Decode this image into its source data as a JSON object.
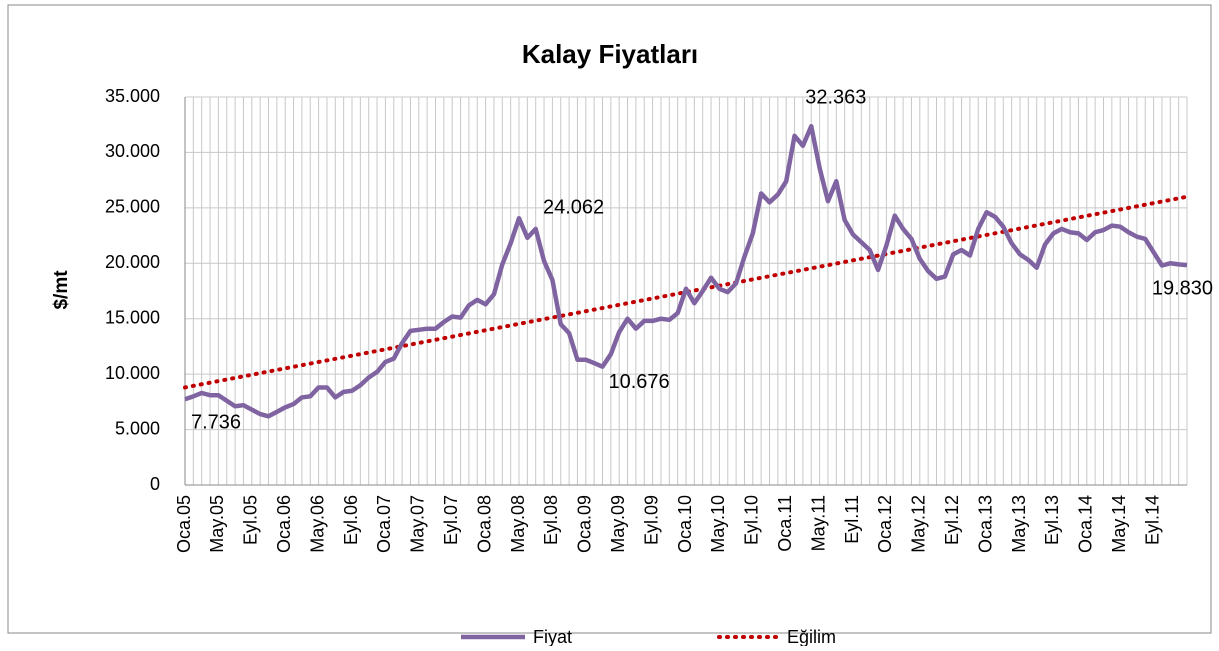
{
  "chart_data": {
    "type": "line",
    "title": "Kalay Fiyatları",
    "y_label": "$/mt",
    "categories": [
      "Oca.05",
      null,
      null,
      null,
      "May.05",
      null,
      null,
      null,
      "Eyl.05",
      null,
      null,
      null,
      "Oca.06",
      null,
      null,
      null,
      "May.06",
      null,
      null,
      null,
      "Eyl.06",
      null,
      null,
      null,
      "Oca.07",
      null,
      null,
      null,
      "May.07",
      null,
      null,
      null,
      "Eyl.07",
      null,
      null,
      null,
      "Oca.08",
      null,
      null,
      null,
      "May.08",
      null,
      null,
      null,
      "Eyl.08",
      null,
      null,
      null,
      "Oca.09",
      null,
      null,
      null,
      "May.09",
      null,
      null,
      null,
      "Eyl.09",
      null,
      null,
      null,
      "Oca.10",
      null,
      null,
      null,
      "May.10",
      null,
      null,
      null,
      "Eyl.10",
      null,
      null,
      null,
      "Oca.11",
      null,
      null,
      null,
      "May.11",
      null,
      null,
      null,
      "Eyl.11",
      null,
      null,
      null,
      "Oca.12",
      null,
      null,
      null,
      "May.12",
      null,
      null,
      null,
      "Eyl.12",
      null,
      null,
      null,
      "Oca.13",
      null,
      null,
      null,
      "May.13",
      null,
      null,
      null,
      "Eyl.13",
      null,
      null,
      null,
      "Oca.14",
      null,
      null,
      null,
      "May.14",
      null,
      null,
      null,
      "Eyl.14",
      null,
      null,
      null,
      null
    ],
    "series": [
      {
        "name": "Fiyat",
        "color": "#8064a2",
        "values": [
          7736,
          8000,
          8300,
          8100,
          8100,
          7600,
          7100,
          7200,
          6800,
          6400,
          6200,
          6600,
          7000,
          7300,
          7900,
          8000,
          8800,
          8800,
          7900,
          8400,
          8500,
          9000,
          9700,
          10200,
          11100,
          11400,
          12800,
          13900,
          14000,
          14100,
          14100,
          14700,
          15200,
          15100,
          16200,
          16700,
          16300,
          17200,
          19900,
          21800,
          24062,
          22300,
          23100,
          20200,
          18500,
          14500,
          13700,
          11300,
          11300,
          11000,
          10676,
          11800,
          13800,
          15000,
          14100,
          14800,
          14800,
          15000,
          14900,
          15500,
          17700,
          16400,
          17500,
          18700,
          17700,
          17400,
          18200,
          20600,
          22700,
          26300,
          25500,
          26200,
          27400,
          31500,
          30600,
          32363,
          28600,
          25600,
          27400,
          23900,
          22600,
          21900,
          21200,
          19400,
          21600,
          24300,
          23100,
          22200,
          20400,
          19300,
          18600,
          18800,
          20800,
          21200,
          20700,
          23100,
          24600,
          24200,
          23300,
          21800,
          20800,
          20300,
          19600,
          21700,
          22700,
          23100,
          22800,
          22700,
          22100,
          22800,
          23000,
          23400,
          23300,
          22800,
          22400,
          22200,
          21000,
          19800,
          20000,
          19900,
          19830
        ]
      }
    ],
    "trend": {
      "name": "Eğilim",
      "color": "#c00000",
      "from": 8800,
      "to": 26000
    },
    "annotations": [
      {
        "index": 0,
        "label": "7.736"
      },
      {
        "index": 40,
        "label": "24.062"
      },
      {
        "index": 50,
        "label": "10.676"
      },
      {
        "index": 75,
        "label": "32.363"
      },
      {
        "index": 120,
        "label": "19.830"
      }
    ],
    "ylim": [
      0,
      35000
    ],
    "yticks": [
      {
        "value": 0,
        "label": "0"
      },
      {
        "value": 5000,
        "label": "5.000"
      },
      {
        "value": 10000,
        "label": "10.000"
      },
      {
        "value": 15000,
        "label": "15.000"
      },
      {
        "value": 20000,
        "label": "20.000"
      },
      {
        "value": 25000,
        "label": "25.000"
      },
      {
        "value": 30000,
        "label": "30.000"
      },
      {
        "value": 35000,
        "label": "35.000"
      }
    ],
    "grid": true,
    "legend": "bottom"
  }
}
